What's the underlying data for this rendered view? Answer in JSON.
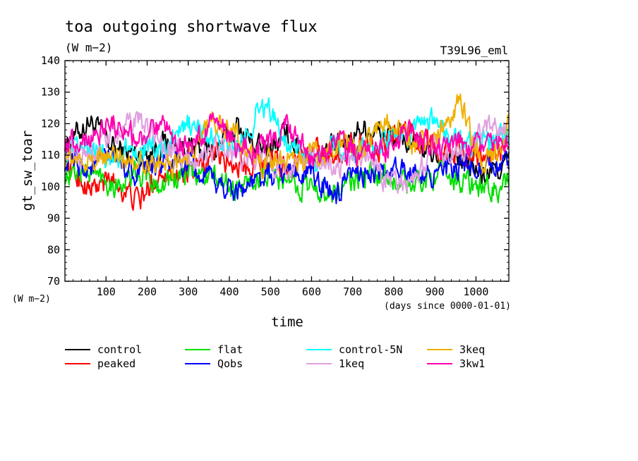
{
  "chart_data": {
    "type": "line",
    "title": "toa outgoing shortwave flux",
    "subtitle": "(W m−2)",
    "experiment": "T39L96_eml",
    "ylabel": "gt_sw_toar",
    "yunits": "(W m−2)",
    "xlabel": "time",
    "xunits": "(days since 0000-01-01)",
    "xlim": [
      0,
      1080
    ],
    "ylim": [
      70,
      140
    ],
    "xticks": [
      100,
      200,
      300,
      400,
      500,
      600,
      700,
      800,
      900,
      1000
    ],
    "yticks": [
      70,
      80,
      90,
      100,
      110,
      120,
      130,
      140
    ],
    "grid": false,
    "legend_position": "bottom",
    "series": [
      {
        "name": "control",
        "color": "#000000",
        "x": [
          0,
          60,
          120,
          180,
          240,
          300,
          360,
          420,
          480,
          540,
          600,
          660,
          720,
          780,
          840,
          900,
          960,
          1020,
          1080
        ],
        "values": [
          113,
          121,
          112,
          110,
          114,
          112,
          111,
          119,
          111,
          116,
          109,
          112,
          119,
          117,
          114,
          110,
          109,
          103,
          108
        ]
      },
      {
        "name": "peaked",
        "color": "#ff0000",
        "x": [
          0,
          60,
          120,
          180,
          240,
          300,
          360,
          420,
          480,
          540,
          600,
          660,
          720,
          780,
          840,
          900,
          960,
          1020,
          1080
        ],
        "values": [
          108,
          99,
          102,
          95,
          106,
          103,
          110,
          107,
          109,
          106,
          112,
          110,
          114,
          113,
          118,
          112,
          111,
          110,
          112
        ]
      },
      {
        "name": "flat",
        "color": "#00e000",
        "x": [
          0,
          60,
          120,
          180,
          240,
          300,
          360,
          420,
          480,
          540,
          600,
          660,
          720,
          780,
          840,
          900,
          960,
          1020,
          1080
        ],
        "values": [
          104,
          105,
          101,
          103,
          101,
          104,
          103,
          99,
          104,
          101,
          100,
          98,
          103,
          104,
          100,
          104,
          102,
          99,
          100
        ]
      },
      {
        "name": "Qobs",
        "color": "#0000ff",
        "x": [
          0,
          60,
          120,
          180,
          240,
          300,
          360,
          420,
          480,
          540,
          600,
          660,
          720,
          780,
          840,
          900,
          960,
          1020,
          1080
        ],
        "values": [
          108,
          106,
          109,
          104,
          108,
          106,
          101,
          99,
          102,
          105,
          104,
          97,
          105,
          103,
          106,
          104,
          105,
          108,
          106
        ]
      },
      {
        "name": "control-5N",
        "color": "#00ffff",
        "x": [
          0,
          60,
          120,
          180,
          240,
          300,
          360,
          420,
          480,
          540,
          600,
          660,
          720,
          780,
          840,
          900,
          960,
          1020,
          1080
        ],
        "values": [
          110,
          112,
          109,
          113,
          110,
          120,
          115,
          111,
          127,
          115,
          109,
          112,
          110,
          115,
          116,
          120,
          113,
          114,
          117
        ]
      },
      {
        "name": "1keq",
        "color": "#e0a0e0",
        "x": [
          0,
          60,
          120,
          180,
          240,
          300,
          360,
          420,
          480,
          540,
          600,
          660,
          720,
          780,
          840,
          900,
          960,
          1020,
          1080
        ],
        "values": [
          112,
          110,
          117,
          121,
          113,
          108,
          112,
          110,
          108,
          107,
          109,
          106,
          110,
          103,
          101,
          112,
          109,
          118,
          119
        ]
      },
      {
        "name": "3keq",
        "color": "#f0b000",
        "x": [
          0,
          60,
          120,
          180,
          240,
          300,
          360,
          420,
          480,
          540,
          600,
          660,
          720,
          780,
          840,
          900,
          960,
          1020,
          1080
        ],
        "values": [
          109,
          108,
          110,
          109,
          106,
          110,
          122,
          115,
          106,
          110,
          109,
          113,
          111,
          122,
          114,
          114,
          128,
          106,
          119
        ]
      },
      {
        "name": "3kw1",
        "color": "#ff00b0",
        "x": [
          0,
          60,
          120,
          180,
          240,
          300,
          360,
          420,
          480,
          540,
          600,
          660,
          720,
          780,
          840,
          900,
          960,
          1020,
          1080
        ],
        "values": [
          114,
          116,
          121,
          114,
          118,
          112,
          121,
          113,
          112,
          119,
          109,
          113,
          110,
          111,
          117,
          111,
          115,
          112,
          114
        ]
      }
    ]
  }
}
